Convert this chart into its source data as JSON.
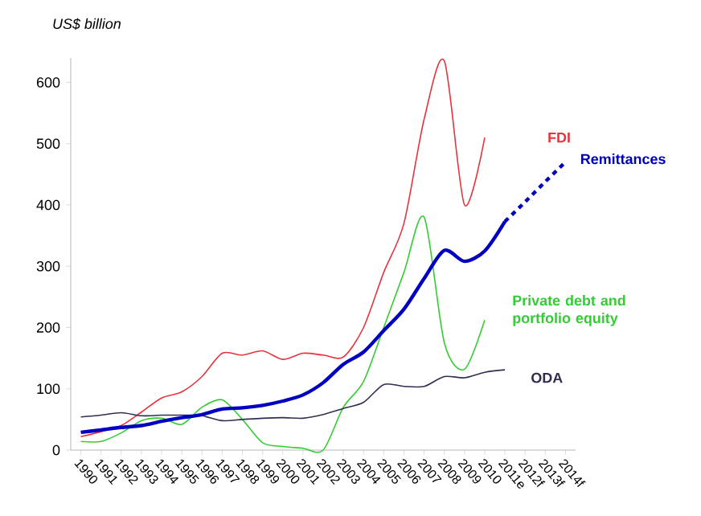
{
  "chart_data": {
    "type": "line",
    "ylabel": "US$ billion",
    "categories": [
      "1990",
      "1991",
      "1992",
      "1993",
      "1994",
      "1995",
      "1996",
      "1997",
      "1998",
      "1999",
      "2000",
      "2001",
      "2002",
      "2003",
      "2004",
      "2005",
      "2006",
      "2007",
      "2008",
      "2009",
      "2010",
      "2011e",
      "2012f",
      "2013f",
      "2014f"
    ],
    "ylim": [
      0,
      640
    ],
    "yticks": [
      0,
      100,
      200,
      300,
      400,
      500,
      600
    ],
    "series": [
      {
        "name": "FDI",
        "color": "#e8323c",
        "values": [
          22,
          30,
          40,
          62,
          85,
          95,
          120,
          158,
          155,
          162,
          148,
          158,
          155,
          152,
          200,
          290,
          370,
          540,
          635,
          400,
          510,
          null,
          null,
          null,
          null
        ]
      },
      {
        "name": "Private debt and portfolio equity",
        "color": "#33cc33",
        "values": [
          14,
          14,
          28,
          48,
          52,
          42,
          70,
          82,
          50,
          12,
          6,
          3,
          0,
          70,
          112,
          200,
          290,
          380,
          175,
          132,
          212,
          null,
          null,
          null,
          null
        ]
      },
      {
        "name": "ODA",
        "color": "#2f2f4f",
        "values": [
          54,
          57,
          61,
          56,
          57,
          57,
          56,
          48,
          50,
          52,
          53,
          52,
          58,
          68,
          78,
          107,
          104,
          104,
          120,
          118,
          127,
          131,
          null,
          null,
          null
        ]
      },
      {
        "name": "Remittances",
        "color": "#0000c0",
        "line_style": "solid",
        "values": [
          29,
          33,
          37,
          40,
          47,
          53,
          58,
          67,
          69,
          73,
          80,
          90,
          110,
          140,
          160,
          195,
          230,
          280,
          326,
          308,
          325,
          373,
          null,
          null,
          null
        ]
      },
      {
        "color": "#0000c0",
        "line_style": "dashed",
        "values": [
          null,
          null,
          null,
          null,
          null,
          null,
          null,
          null,
          null,
          null,
          null,
          null,
          null,
          null,
          null,
          null,
          null,
          null,
          null,
          null,
          null,
          373,
          405,
          438,
          470
        ]
      }
    ]
  }
}
